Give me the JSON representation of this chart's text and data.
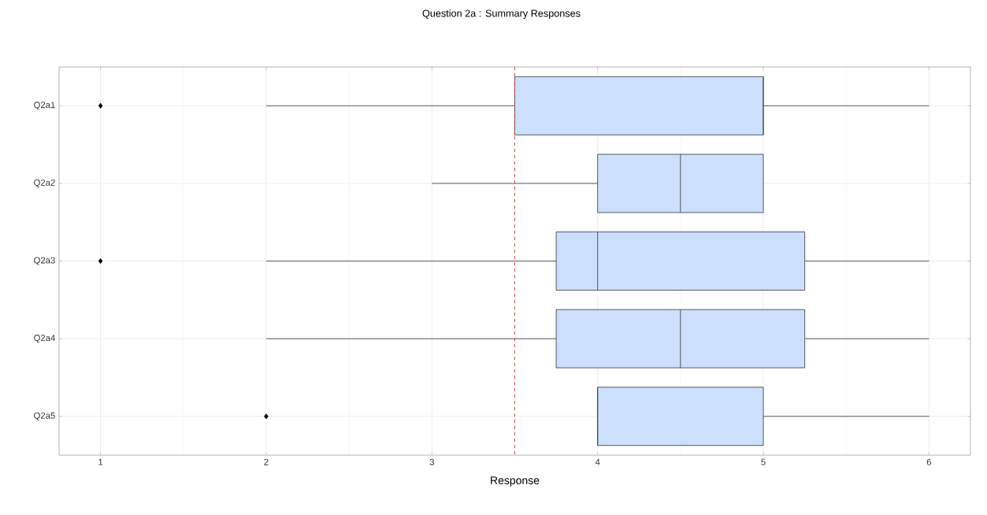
{
  "chart_data": {
    "type": "box",
    "title": "Question 2a : Summary Responses",
    "xlabel": "Response",
    "orientation": "horizontal",
    "categories": [
      "Q2a1",
      "Q2a2",
      "Q2a3",
      "Q2a4",
      "Q2a5"
    ],
    "color": "#cce0fd",
    "boxes": [
      {
        "low": 2,
        "q1": 3.5,
        "median": 5,
        "q3": 5,
        "high": 6,
        "outliers": [
          1
        ]
      },
      {
        "low": 3,
        "q1": 4,
        "median": 4.5,
        "q3": 5,
        "high": 5
      },
      {
        "low": 2,
        "q1": 3.75,
        "median": 4,
        "q3": 5.25,
        "high": 6,
        "outliers": [
          1
        ]
      },
      {
        "low": 2,
        "q1": 3.75,
        "median": 4.5,
        "q3": 5.25,
        "high": 6
      },
      {
        "low": 4,
        "q1": 4,
        "median": 4,
        "q3": 5,
        "high": 6,
        "outliers": [
          2
        ]
      }
    ],
    "xlim": [
      0.75,
      6.25
    ],
    "xticks": [
      1,
      2,
      3,
      4,
      5,
      6
    ],
    "grid": true,
    "ref_lines": [
      {
        "axis": "x",
        "value": 3.5,
        "color": "#e0393c",
        "line_style": "dashed"
      }
    ]
  }
}
